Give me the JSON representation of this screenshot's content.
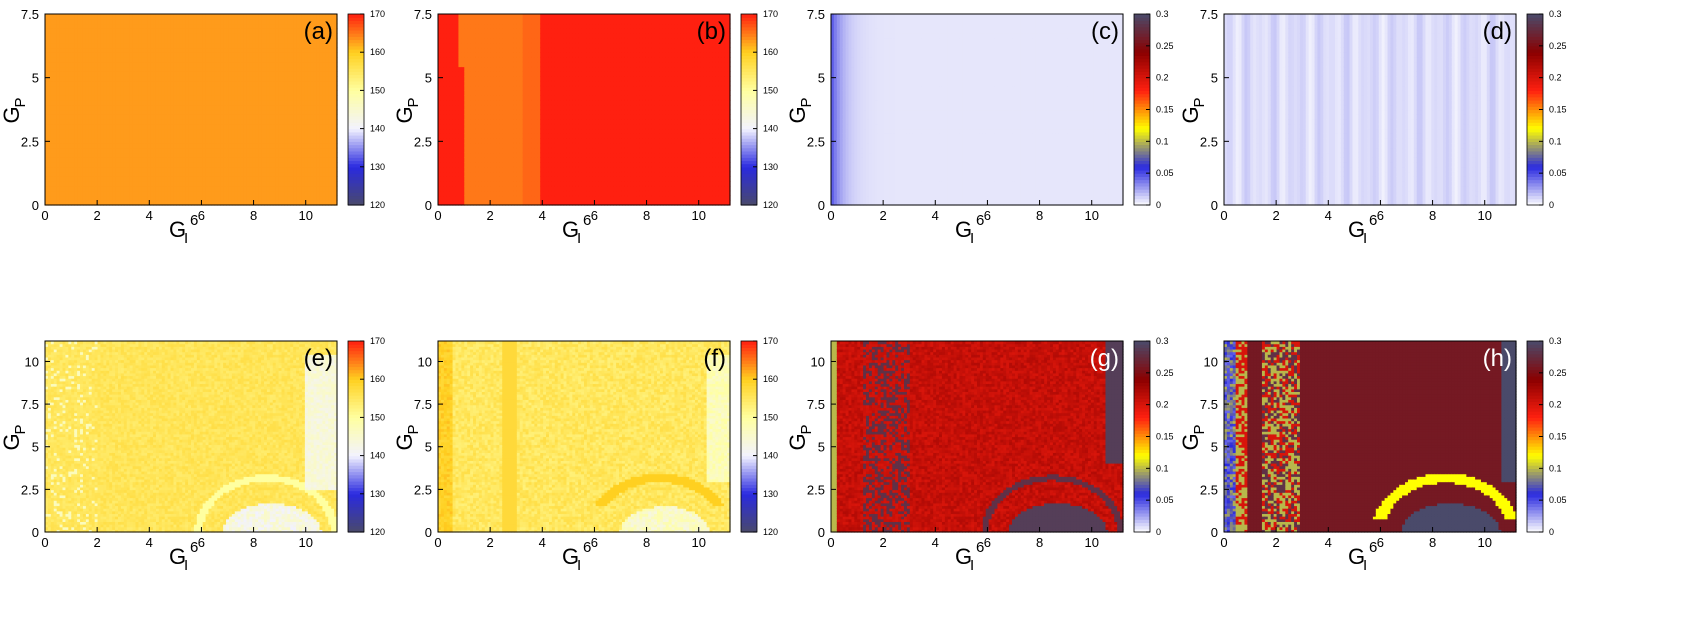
{
  "figure": {
    "x_axis_label": "G",
    "x_axis_label_sub": "I",
    "x_axis_label_sup": "6",
    "y_axis_label": "G",
    "y_axis_label_sub": "P"
  },
  "colors": {
    "temperature_palette": [
      "#4a4a6a",
      "#2a2ae0",
      "#f2f2ff",
      "#ffffa0",
      "#ffd020",
      "#ff2010"
    ],
    "error_palette": [
      "#ffffff",
      "#2a2ae0",
      "#ffff00",
      "#ff2010",
      "#8b0000",
      "#4a4a6a"
    ],
    "colorbar_temperature_top": "#ff3333",
    "colorbar_error_top": "#3a3a3a"
  },
  "chart_data": [
    {
      "type": "heatmap",
      "panel_label": "(a)",
      "colorscale": "temperature",
      "x_ticks": [
        "0",
        "2",
        "4",
        "6",
        "8",
        "10"
      ],
      "y_ticks": [
        "0",
        "2.5",
        "5",
        "7.5"
      ],
      "xlim": [
        0,
        11.2
      ],
      "ylim": [
        0,
        7.5
      ],
      "colorbar_ticks": [
        "120",
        "130",
        "140",
        "150",
        "160",
        "170"
      ],
      "colorbar_range": [
        120,
        170
      ],
      "pattern": "uniform",
      "approx_value": 163
    },
    {
      "type": "heatmap",
      "panel_label": "(b)",
      "colorscale": "temperature",
      "x_ticks": [
        "0",
        "2",
        "4",
        "6",
        "8",
        "10"
      ],
      "y_ticks": [
        "0",
        "2.5",
        "5",
        "7.5"
      ],
      "xlim": [
        0,
        11.2
      ],
      "ylim": [
        0,
        7.5
      ],
      "colorbar_ticks": [
        "120",
        "130",
        "140",
        "150",
        "160",
        "170"
      ],
      "colorbar_range": [
        120,
        170
      ],
      "pattern": "vertical_bands",
      "bands": [
        {
          "x_from": 0,
          "x_to": 0.8,
          "value": 170
        },
        {
          "x_from": 0.8,
          "x_to": 3.3,
          "value": 165
        },
        {
          "x_from": 3.3,
          "x_to": 3.9,
          "value": 166
        },
        {
          "x_from": 3.9,
          "x_to": 11.2,
          "value": 170
        }
      ]
    },
    {
      "type": "heatmap",
      "panel_label": "(c)",
      "colorscale": "error",
      "x_ticks": [
        "0",
        "2",
        "4",
        "6",
        "8",
        "10"
      ],
      "y_ticks": [
        "0",
        "2.5",
        "5",
        "7.5"
      ],
      "xlim": [
        0,
        11.2
      ],
      "ylim": [
        0,
        7.5
      ],
      "colorbar_ticks": [
        "0",
        "0.05",
        "0.1",
        "0.15",
        "0.2",
        "0.25",
        "0.3"
      ],
      "colorbar_range": [
        0,
        0.3
      ],
      "pattern": "decay_from_left",
      "approx_value_left": 0.05,
      "approx_value_right": 0.007
    },
    {
      "type": "heatmap",
      "panel_label": "(d)",
      "colorscale": "error",
      "x_ticks": [
        "0",
        "2",
        "4",
        "6",
        "8",
        "10"
      ],
      "y_ticks": [
        "0",
        "2.5",
        "5",
        "7.5"
      ],
      "xlim": [
        0,
        11.2
      ],
      "ylim": [
        0,
        7.5
      ],
      "colorbar_ticks": [
        "0",
        "0.05",
        "0.1",
        "0.15",
        "0.2",
        "0.25",
        "0.3"
      ],
      "colorbar_range": [
        0,
        0.3
      ],
      "pattern": "faint_stripes",
      "approx_value": 0.01
    },
    {
      "type": "heatmap",
      "panel_label": "(e)",
      "colorscale": "temperature",
      "x_ticks": [
        "0",
        "2",
        "4",
        "6",
        "8",
        "10"
      ],
      "y_ticks": [
        "0",
        "2.5",
        "5",
        "7.5",
        "10"
      ],
      "xlim": [
        0,
        11.2
      ],
      "ylim": [
        0,
        11.2
      ],
      "colorbar_ticks": [
        "120",
        "130",
        "140",
        "150",
        "160",
        "170"
      ],
      "colorbar_range": [
        120,
        170
      ],
      "pattern": "complex",
      "approx_value": 155
    },
    {
      "type": "heatmap",
      "panel_label": "(f)",
      "colorscale": "temperature",
      "x_ticks": [
        "0",
        "2",
        "4",
        "6",
        "8",
        "10"
      ],
      "y_ticks": [
        "0",
        "2.5",
        "5",
        "7.5",
        "10"
      ],
      "xlim": [
        0,
        11.2
      ],
      "ylim": [
        0,
        11.2
      ],
      "colorbar_ticks": [
        "120",
        "130",
        "140",
        "150",
        "160",
        "170"
      ],
      "colorbar_range": [
        120,
        170
      ],
      "pattern": "complex",
      "approx_value": 156
    },
    {
      "type": "heatmap",
      "panel_label": "(g)",
      "colorscale": "error",
      "x_ticks": [
        "0",
        "2",
        "4",
        "6",
        "8",
        "10"
      ],
      "y_ticks": [
        "0",
        "2.5",
        "5",
        "7.5",
        "10"
      ],
      "xlim": [
        0,
        11.2
      ],
      "ylim": [
        0,
        11.2
      ],
      "colorbar_ticks": [
        "0",
        "0.05",
        "0.1",
        "0.15",
        "0.2",
        "0.25",
        "0.3"
      ],
      "colorbar_range": [
        0,
        0.3
      ],
      "pattern": "complex",
      "approx_value": 0.2
    },
    {
      "type": "heatmap",
      "panel_label": "(h)",
      "colorscale": "error",
      "x_ticks": [
        "0",
        "2",
        "4",
        "6",
        "8",
        "10"
      ],
      "y_ticks": [
        "0",
        "2.5",
        "5",
        "7.5",
        "10"
      ],
      "xlim": [
        0,
        11.2
      ],
      "ylim": [
        0,
        11.2
      ],
      "colorbar_ticks": [
        "0",
        "0.05",
        "0.1",
        "0.15",
        "0.2",
        "0.25",
        "0.3"
      ],
      "colorbar_range": [
        0,
        0.3
      ],
      "pattern": "complex",
      "approx_value": 0.24
    }
  ]
}
